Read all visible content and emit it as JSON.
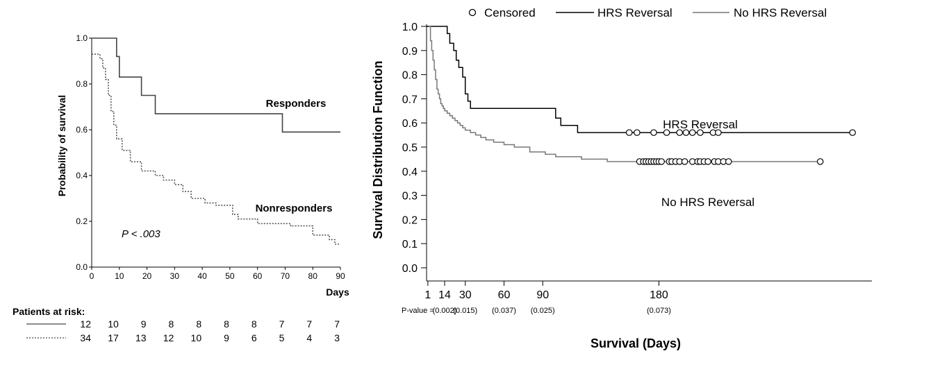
{
  "colors": {
    "responders": "#444444",
    "nonresponders": "#555555",
    "hrs": "#000000",
    "no_hrs": "#777777"
  },
  "chart_data": [
    {
      "type": "line",
      "title": "",
      "ylabel": "Probability of survival",
      "xlabel": "Days",
      "xlim": [
        0,
        90
      ],
      "ylim": [
        0,
        1
      ],
      "xticks": [
        0,
        10,
        20,
        30,
        40,
        50,
        60,
        70,
        80,
        90
      ],
      "yticks": [
        0,
        0.2,
        0.4,
        0.6,
        0.8,
        1.0
      ],
      "xtick_labels": [
        "0",
        "10",
        "20",
        "30",
        "40",
        "50",
        "60",
        "70",
        "80",
        "90"
      ],
      "ytick_labels": [
        "0.0",
        "0.2",
        "0.4",
        "0.6",
        "0.8",
        "1.0"
      ],
      "series": [
        {
          "name": "Responders",
          "style": "solid",
          "x": [
            0,
            9,
            10,
            18,
            23,
            69,
            90
          ],
          "y": [
            1.0,
            0.92,
            0.83,
            0.75,
            0.67,
            0.59,
            0.59
          ]
        },
        {
          "name": "Nonresponders",
          "style": "dotted",
          "x": [
            0,
            3,
            4,
            5,
            6,
            7,
            8,
            9,
            11,
            14,
            18,
            23,
            26,
            30,
            33,
            36,
            41,
            45,
            51,
            53,
            60,
            72,
            80,
            86,
            88,
            90
          ],
          "y": [
            0.93,
            0.91,
            0.87,
            0.82,
            0.75,
            0.68,
            0.62,
            0.56,
            0.51,
            0.46,
            0.42,
            0.4,
            0.38,
            0.36,
            0.33,
            0.3,
            0.28,
            0.27,
            0.23,
            0.21,
            0.19,
            0.18,
            0.14,
            0.12,
            0.1,
            0.1
          ]
        }
      ],
      "annotation": "P < .003",
      "risk_table": {
        "title": "Patients at risk:",
        "rows": [
          {
            "style": "solid",
            "values": [
              "12",
              "10",
              "9",
              "8",
              "8",
              "8",
              "8",
              "7",
              "7",
              "7"
            ]
          },
          {
            "style": "dotted",
            "values": [
              "34",
              "17",
              "13",
              "12",
              "10",
              "9",
              "6",
              "5",
              "4",
              "3"
            ]
          }
        ]
      }
    },
    {
      "type": "line",
      "title": "",
      "ylabel": "Survival Distribution Function",
      "xlabel": "Survival (Days)",
      "xlim": [
        0,
        345
      ],
      "ylim": [
        0,
        1
      ],
      "yticks": [
        0.0,
        0.1,
        0.2,
        0.3,
        0.4,
        0.5,
        0.6,
        0.7,
        0.8,
        0.9,
        1.0
      ],
      "ytick_labels": [
        "0.0",
        "0.1",
        "0.2",
        "0.3",
        "0.4",
        "0.5",
        "0.6",
        "0.7",
        "0.8",
        "0.9",
        "1.0"
      ],
      "xticks": [
        1,
        14,
        30,
        60,
        90,
        180
      ],
      "xtick_labels": [
        "1",
        "14",
        "30",
        "60",
        "90",
        "180"
      ],
      "pvalue_label": "P-value =",
      "pvalues": [
        {
          "x": 14,
          "text": "(0.002)"
        },
        {
          "x": 30,
          "text": "(0.015)"
        },
        {
          "x": 60,
          "text": "(0.037)"
        },
        {
          "x": 90,
          "text": "(0.025)"
        },
        {
          "x": 180,
          "text": "(0.073)"
        }
      ],
      "legend": {
        "position": "top",
        "entries": [
          "Censored",
          "HRS Reversal",
          "No HRS Reversal"
        ]
      },
      "series": [
        {
          "name": "HRS Reversal",
          "label": "HRS Reversal",
          "x": [
            0,
            16,
            18,
            21,
            23,
            25,
            28,
            30,
            32,
            34,
            36,
            100,
            104,
            117,
            330
          ],
          "y": [
            1.0,
            0.97,
            0.93,
            0.9,
            0.86,
            0.83,
            0.79,
            0.72,
            0.69,
            0.66,
            0.66,
            0.62,
            0.59,
            0.56,
            0.56
          ],
          "censored_x": [
            157,
            163,
            176,
            186,
            196,
            201,
            206,
            212,
            222,
            226,
            330
          ],
          "censored_y": 0.56
        },
        {
          "name": "No HRS Reversal",
          "label": "No HRS Reversal",
          "x": [
            2,
            3,
            4,
            5,
            6,
            7,
            8,
            9,
            10,
            11,
            12,
            13,
            14,
            16,
            18,
            20,
            22,
            24,
            26,
            28,
            30,
            34,
            38,
            42,
            46,
            52,
            60,
            68,
            80,
            92,
            100,
            120,
            140,
            305
          ],
          "y": [
            1.0,
            0.94,
            0.9,
            0.86,
            0.82,
            0.78,
            0.74,
            0.72,
            0.7,
            0.68,
            0.67,
            0.66,
            0.65,
            0.64,
            0.63,
            0.62,
            0.61,
            0.6,
            0.59,
            0.58,
            0.57,
            0.56,
            0.55,
            0.54,
            0.53,
            0.52,
            0.51,
            0.5,
            0.48,
            0.47,
            0.46,
            0.45,
            0.44,
            0.44
          ],
          "censored_x": [
            165,
            168,
            170,
            172,
            174,
            176,
            178,
            180,
            182,
            188,
            190,
            193,
            196,
            200,
            206,
            210,
            212,
            215,
            218,
            223,
            226,
            230,
            234,
            305
          ],
          "censored_y": 0.44
        }
      ]
    }
  ],
  "left": {
    "ylabel": "Probability of survival",
    "xlabel": "Days",
    "responders_label": "Responders",
    "nonresponders_label": "Nonresponders",
    "pvalue": "P < .003",
    "risk_title": "Patients at risk:"
  },
  "right": {
    "ylabel": "Survival Distribution Function",
    "xlabel": "Survival (Days)",
    "hrs_label": "HRS Reversal",
    "no_hrs_label": "No HRS Reversal",
    "pvalue_label": "P-value =",
    "legend_censored": "Censored",
    "legend_hrs": "HRS Reversal",
    "legend_no_hrs": "No HRS Reversal"
  }
}
